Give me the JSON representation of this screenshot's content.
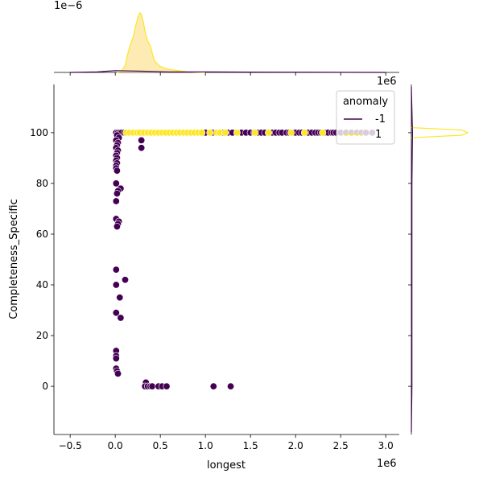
{
  "chart_data": {
    "type": "scatter",
    "title": "",
    "xlabel": "longest",
    "ylabel": "Completeness_Specific",
    "x_offset_text": "1e6",
    "y_offset_text": "",
    "top_marginal_offset_text": "1e−6",
    "right_marginal_offset_text": "1e6",
    "xlim": [
      -0.68,
      3.15
    ],
    "ylim": [
      -19,
      119
    ],
    "x_ticks": [
      -0.5,
      0.0,
      0.5,
      1.0,
      1.5,
      2.0,
      2.5,
      3.0
    ],
    "x_tick_labels": [
      "−0.5",
      "0.0",
      "0.5",
      "1.0",
      "1.5",
      "2.0",
      "2.5",
      "3.0"
    ],
    "y_ticks": [
      0,
      20,
      40,
      60,
      80,
      100
    ],
    "y_tick_labels": [
      "0",
      "20",
      "40",
      "60",
      "80",
      "100"
    ],
    "grid": false,
    "legend": {
      "title": "anomaly",
      "placement": "top-right",
      "entries": [
        {
          "label": "-1",
          "color": "#440154"
        },
        {
          "label": "1",
          "color": "#fde725"
        }
      ]
    },
    "series": [
      {
        "name": "-1",
        "color": "#440154",
        "points": [
          [
            0.01,
            100
          ],
          [
            0.03,
            100
          ],
          [
            0.05,
            100
          ],
          [
            0.07,
            100
          ],
          [
            0.1,
            100
          ],
          [
            0.02,
            99
          ],
          [
            0.04,
            98
          ],
          [
            0.01,
            97
          ],
          [
            0.03,
            96
          ],
          [
            0.02,
            95
          ],
          [
            0.01,
            94
          ],
          [
            0.03,
            93
          ],
          [
            0.02,
            92
          ],
          [
            0.01,
            91
          ],
          [
            0.02,
            90
          ],
          [
            0.01,
            89
          ],
          [
            0.02,
            88
          ],
          [
            0.01,
            87
          ],
          [
            0.01,
            86
          ],
          [
            0.02,
            85
          ],
          [
            0.29,
            100
          ],
          [
            0.29,
            97
          ],
          [
            0.29,
            94
          ],
          [
            0.01,
            80
          ],
          [
            0.06,
            78
          ],
          [
            0.03,
            77
          ],
          [
            0.02,
            76
          ],
          [
            0.01,
            73
          ],
          [
            0.01,
            66
          ],
          [
            0.04,
            65
          ],
          [
            0.03,
            64
          ],
          [
            0.02,
            63
          ],
          [
            0.01,
            46
          ],
          [
            0.11,
            42
          ],
          [
            0.01,
            40
          ],
          [
            0.05,
            35
          ],
          [
            0.01,
            29
          ],
          [
            0.06,
            27
          ],
          [
            0.01,
            14
          ],
          [
            0.01,
            12
          ],
          [
            0.01,
            11
          ],
          [
            0.01,
            7
          ],
          [
            0.02,
            6
          ],
          [
            0.03,
            5
          ],
          [
            0.34,
            1.5
          ],
          [
            0.33,
            0
          ],
          [
            0.36,
            0
          ],
          [
            0.39,
            0
          ],
          [
            0.41,
            0
          ],
          [
            0.48,
            0
          ],
          [
            0.52,
            0
          ],
          [
            0.57,
            0
          ],
          [
            1.09,
            0
          ],
          [
            1.28,
            0
          ],
          [
            1.0,
            100
          ],
          [
            1.08,
            100
          ],
          [
            1.12,
            100
          ],
          [
            1.18,
            100
          ],
          [
            1.2,
            100
          ],
          [
            1.25,
            100
          ],
          [
            1.3,
            100
          ],
          [
            1.36,
            100
          ],
          [
            1.4,
            100
          ],
          [
            1.45,
            100
          ],
          [
            1.5,
            100
          ],
          [
            1.54,
            100
          ],
          [
            1.58,
            100
          ],
          [
            1.62,
            100
          ],
          [
            1.66,
            100
          ],
          [
            1.7,
            100
          ],
          [
            1.74,
            100
          ],
          [
            1.78,
            100
          ],
          [
            1.82,
            100
          ],
          [
            1.85,
            100
          ],
          [
            1.9,
            100
          ],
          [
            1.93,
            100
          ],
          [
            1.97,
            100
          ],
          [
            2.0,
            100
          ],
          [
            2.04,
            100
          ],
          [
            2.07,
            100
          ],
          [
            2.1,
            100
          ],
          [
            2.14,
            100
          ],
          [
            2.18,
            100
          ],
          [
            2.22,
            100
          ],
          [
            2.25,
            100
          ],
          [
            2.28,
            100
          ],
          [
            2.32,
            100
          ],
          [
            2.36,
            100
          ],
          [
            2.4,
            100
          ],
          [
            2.42,
            100
          ],
          [
            2.45,
            100
          ],
          [
            2.5,
            100
          ],
          [
            2.56,
            100
          ],
          [
            2.62,
            100
          ],
          [
            2.68,
            100
          ],
          [
            2.73,
            100
          ],
          [
            2.78,
            100
          ],
          [
            2.85,
            100
          ]
        ]
      },
      {
        "name": "1",
        "color": "#fde725",
        "points": [
          [
            0.12,
            100
          ],
          [
            0.16,
            100
          ],
          [
            0.2,
            100
          ],
          [
            0.24,
            100
          ],
          [
            0.27,
            100
          ],
          [
            0.32,
            100
          ],
          [
            0.36,
            100
          ],
          [
            0.4,
            100
          ],
          [
            0.44,
            100
          ],
          [
            0.48,
            100
          ],
          [
            0.52,
            100
          ],
          [
            0.56,
            100
          ],
          [
            0.6,
            100
          ],
          [
            0.64,
            100
          ],
          [
            0.68,
            100
          ],
          [
            0.72,
            100
          ],
          [
            0.76,
            100
          ],
          [
            0.8,
            100
          ],
          [
            0.84,
            100
          ],
          [
            0.88,
            100
          ],
          [
            0.92,
            100
          ],
          [
            0.96,
            100
          ],
          [
            1.05,
            100
          ],
          [
            1.13,
            100
          ],
          [
            1.16,
            100
          ],
          [
            1.22,
            100
          ],
          [
            1.35,
            100
          ],
          [
            1.55,
            100
          ],
          [
            1.7,
            100
          ],
          [
            1.95,
            100
          ],
          [
            2.1,
            100
          ],
          [
            2.3,
            100
          ]
        ]
      }
    ],
    "top_marginal": {
      "type": "kde",
      "series": [
        {
          "name": "1",
          "color": "#fde725",
          "fill": "#fbe6a0",
          "x": [
            0.02,
            0.05,
            0.08,
            0.11,
            0.14,
            0.17,
            0.2,
            0.23,
            0.25,
            0.27,
            0.28,
            0.29,
            0.31,
            0.33,
            0.35,
            0.37,
            0.39,
            0.41,
            0.43,
            0.45,
            0.47,
            0.5,
            0.55,
            0.6,
            0.65,
            0.7,
            0.8,
            0.9,
            1.0
          ],
          "y": [
            0.0,
            0.01,
            0.04,
            0.12,
            0.32,
            0.48,
            0.6,
            0.8,
            0.93,
            0.99,
            1.0,
            0.97,
            0.86,
            0.7,
            0.57,
            0.5,
            0.44,
            0.33,
            0.22,
            0.17,
            0.14,
            0.1,
            0.07,
            0.05,
            0.04,
            0.03,
            0.01,
            0.005,
            0.0
          ]
        },
        {
          "name": "-1",
          "color": "#440154",
          "fill": "none",
          "x": [
            -0.5,
            -0.2,
            0.0,
            0.3,
            0.6,
            1.0,
            1.5,
            2.0,
            2.5,
            3.0
          ],
          "y": [
            0.0,
            0.01,
            0.03,
            0.02,
            0.01,
            0.01,
            0.006,
            0.004,
            0.002,
            0.0
          ]
        }
      ]
    },
    "right_marginal": {
      "type": "kde",
      "series": [
        {
          "name": "1",
          "color": "#fde725",
          "y": [
            98,
            99,
            100,
            101,
            102
          ],
          "x": [
            0.0,
            0.9,
            1.0,
            0.9,
            0.0
          ]
        },
        {
          "name": "-1",
          "color": "#440154",
          "y": [
            -18,
            0,
            20,
            40,
            60,
            80,
            100,
            118
          ],
          "x": [
            0.0,
            0.01,
            0.01,
            0.01,
            0.01,
            0.01,
            0.02,
            0.0
          ]
        }
      ]
    }
  }
}
